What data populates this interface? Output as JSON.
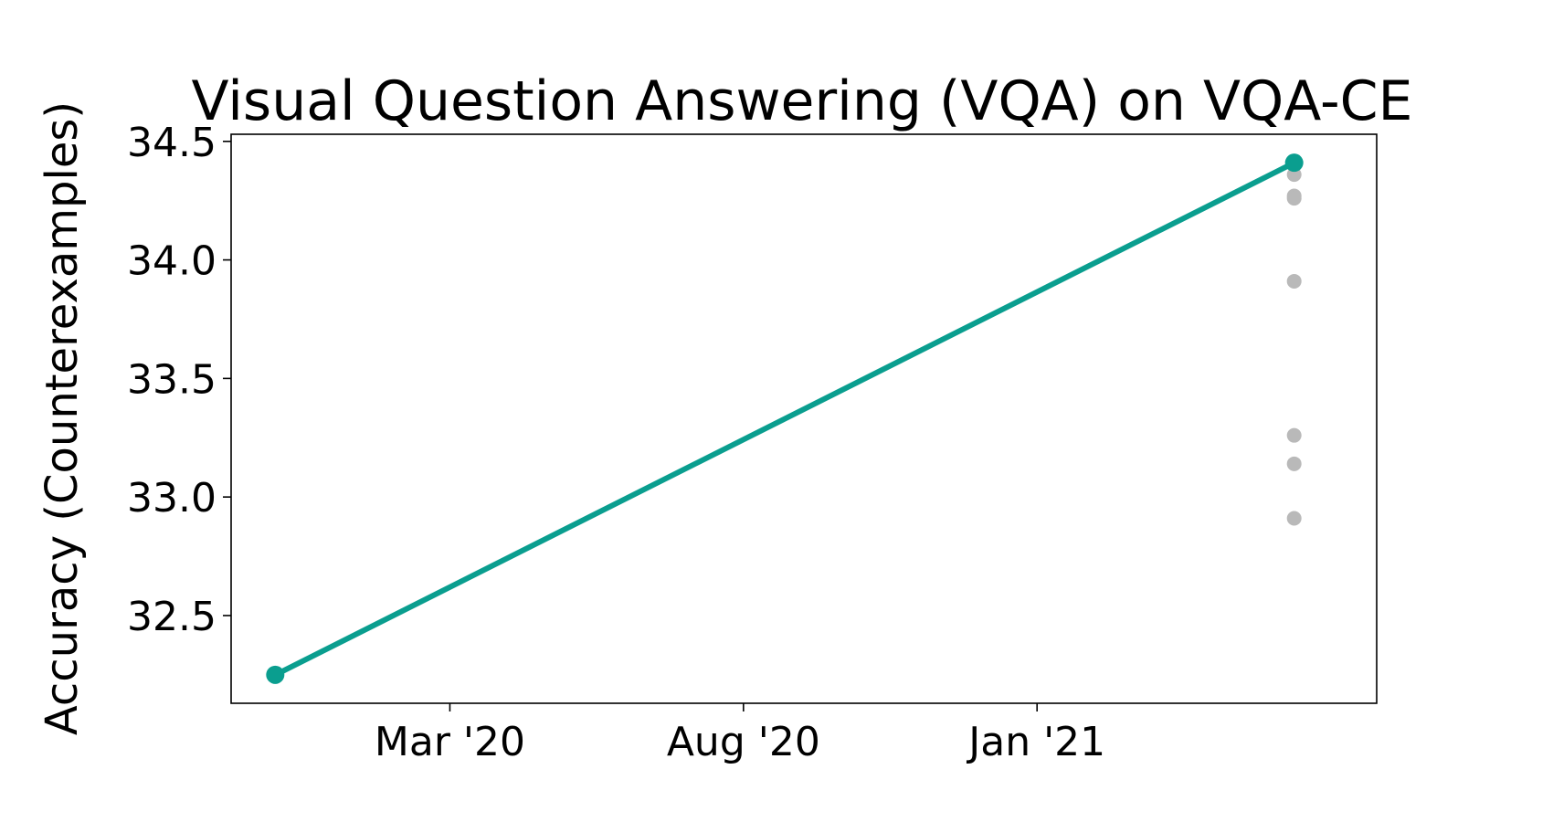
{
  "chart_data": {
    "type": "scatter",
    "title": "Visual Question Answering (VQA) on VQA-CE",
    "ylabel": "Accuracy (Counterexamples)",
    "xlabel": "",
    "ylim": [
      32.13,
      34.53
    ],
    "xlim": [
      "2019-11-08",
      "2021-06-27"
    ],
    "yticks": [
      32.5,
      33.0,
      33.5,
      34.0,
      34.5
    ],
    "xticks": [
      {
        "date": "2020-03-01",
        "label": "Mar '20"
      },
      {
        "date": "2020-08-01",
        "label": "Aug '20"
      },
      {
        "date": "2021-01-01",
        "label": "Jan '21"
      }
    ],
    "grid": false,
    "legend": "none",
    "colors": {
      "sota": "#0a9e8f",
      "other": "#b9b9b9"
    },
    "series": [
      {
        "role": "state-of-the-art",
        "points": [
          {
            "x": "2019-12-01",
            "y": 32.25
          },
          {
            "x": "2021-05-15",
            "y": 34.41
          }
        ]
      },
      {
        "role": "other-models",
        "points": [
          {
            "x": "2021-05-15",
            "y": 34.36
          },
          {
            "x": "2021-05-15",
            "y": 34.27
          },
          {
            "x": "2021-05-15",
            "y": 34.26
          },
          {
            "x": "2021-05-15",
            "y": 33.91
          },
          {
            "x": "2021-05-15",
            "y": 33.26
          },
          {
            "x": "2021-05-15",
            "y": 33.14
          },
          {
            "x": "2021-05-15",
            "y": 32.91
          }
        ]
      }
    ]
  }
}
